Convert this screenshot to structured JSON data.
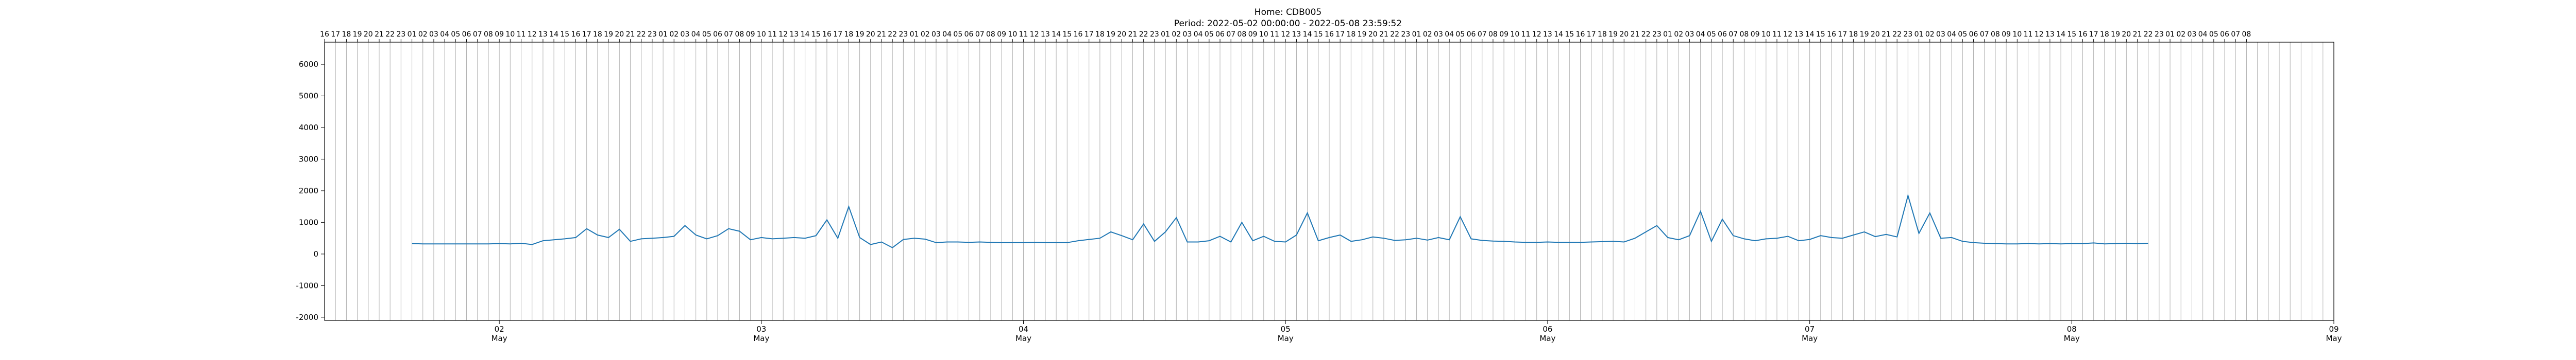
{
  "title": "Home: CDB005",
  "subtitle": "Period: 2022-05-02 00:00:00 - 2022-05-08 23:59:52",
  "chart_data": {
    "type": "line",
    "title": "Home: CDB005",
    "subtitle": "Period: 2022-05-02 00:00:00 - 2022-05-08 23:59:52",
    "xlabel": "",
    "ylabel": "",
    "x_start": "2022-05-01 16:00",
    "x_end": "2022-05-09 08:00",
    "xlim": [
      -8,
      176
    ],
    "ylim": [
      -2100,
      6700
    ],
    "grid": true,
    "grid_axis": "x-hourly",
    "legend": false,
    "line_color": "#1f77b4",
    "bottom_ticks": [
      {
        "x": 8,
        "day": "02",
        "month": "May"
      },
      {
        "x": 32,
        "day": "03",
        "month": "May"
      },
      {
        "x": 56,
        "day": "04",
        "month": "May"
      },
      {
        "x": 80,
        "day": "05",
        "month": "May"
      },
      {
        "x": 104,
        "day": "06",
        "month": "May"
      },
      {
        "x": 128,
        "day": "07",
        "month": "May"
      },
      {
        "x": 152,
        "day": "08",
        "month": "May"
      },
      {
        "x": 176,
        "day": "09",
        "month": "May"
      }
    ],
    "y_ticks": [
      -2000,
      -1000,
      0,
      1000,
      2000,
      3000,
      4000,
      5000,
      6000
    ],
    "top_hour_ticks": [
      "16",
      "17",
      "18",
      "19",
      "20",
      "21",
      "22",
      "23",
      "01",
      "02",
      "03",
      "04",
      "05",
      "06",
      "07",
      "08",
      "09",
      "10",
      "11",
      "12",
      "13",
      "14",
      "15",
      "16",
      "17",
      "18",
      "19",
      "20",
      "21",
      "22",
      "23",
      "01",
      "02",
      "03",
      "04",
      "05",
      "06",
      "07",
      "08",
      "09",
      "10",
      "11",
      "12",
      "13",
      "14",
      "15",
      "16",
      "17",
      "18",
      "19",
      "20",
      "21",
      "22",
      "23",
      "01",
      "02",
      "03",
      "04",
      "05",
      "06",
      "07",
      "08",
      "09",
      "10",
      "11",
      "12",
      "13",
      "14",
      "15",
      "16",
      "17",
      "18",
      "19",
      "20",
      "21",
      "22",
      "23",
      "01",
      "02",
      "03",
      "04",
      "05",
      "06",
      "07",
      "08",
      "09",
      "10",
      "11",
      "12",
      "13",
      "14",
      "15",
      "16",
      "17",
      "18",
      "19",
      "20",
      "21",
      "22",
      "23",
      "01",
      "02",
      "03",
      "04",
      "05",
      "06",
      "07",
      "08",
      "09",
      "10",
      "11",
      "12",
      "13",
      "14",
      "15",
      "16",
      "17",
      "18",
      "19",
      "20",
      "21",
      "22",
      "23",
      "01",
      "02",
      "03",
      "04",
      "05",
      "06",
      "07",
      "08",
      "09",
      "10",
      "11",
      "12",
      "13",
      "14",
      "15",
      "16",
      "17",
      "18",
      "19",
      "20",
      "21",
      "22",
      "23",
      "01",
      "02",
      "03",
      "04",
      "05",
      "06",
      "07",
      "08",
      "09",
      "10",
      "11",
      "12",
      "13",
      "14",
      "15",
      "16",
      "17",
      "18",
      "19",
      "20",
      "21",
      "22",
      "23",
      "01",
      "02",
      "03",
      "04",
      "05",
      "06",
      "07",
      "08"
    ],
    "series": [
      {
        "name": "",
        "points": [
          [
            0,
            330
          ],
          [
            1,
            320
          ],
          [
            2,
            320
          ],
          [
            3,
            320
          ],
          [
            4,
            320
          ],
          [
            5,
            320
          ],
          [
            6,
            320
          ],
          [
            7,
            320
          ],
          [
            8,
            330
          ],
          [
            9,
            320
          ],
          [
            10,
            340
          ],
          [
            11,
            300
          ],
          [
            12,
            420
          ],
          [
            13,
            450
          ],
          [
            14,
            480
          ],
          [
            15,
            520
          ],
          [
            16,
            800
          ],
          [
            17,
            600
          ],
          [
            18,
            520
          ],
          [
            19,
            780
          ],
          [
            20,
            400
          ],
          [
            21,
            480
          ],
          [
            22,
            500
          ],
          [
            23,
            520
          ],
          [
            24,
            560
          ],
          [
            25,
            900
          ],
          [
            26,
            600
          ],
          [
            27,
            480
          ],
          [
            28,
            580
          ],
          [
            29,
            800
          ],
          [
            30,
            720
          ],
          [
            31,
            450
          ],
          [
            32,
            520
          ],
          [
            33,
            480
          ],
          [
            34,
            500
          ],
          [
            35,
            520
          ],
          [
            36,
            500
          ],
          [
            37,
            580
          ],
          [
            38,
            1080
          ],
          [
            39,
            500
          ],
          [
            40,
            1500
          ],
          [
            41,
            520
          ],
          [
            42,
            300
          ],
          [
            43,
            380
          ],
          [
            44,
            200
          ],
          [
            45,
            460
          ],
          [
            46,
            500
          ],
          [
            47,
            470
          ],
          [
            48,
            360
          ],
          [
            49,
            380
          ],
          [
            50,
            380
          ],
          [
            51,
            370
          ],
          [
            52,
            380
          ],
          [
            53,
            370
          ],
          [
            54,
            360
          ],
          [
            55,
            360
          ],
          [
            56,
            360
          ],
          [
            57,
            370
          ],
          [
            58,
            360
          ],
          [
            59,
            360
          ],
          [
            60,
            360
          ],
          [
            61,
            420
          ],
          [
            62,
            460
          ],
          [
            63,
            500
          ],
          [
            64,
            700
          ],
          [
            65,
            580
          ],
          [
            66,
            450
          ],
          [
            67,
            950
          ],
          [
            68,
            400
          ],
          [
            69,
            700
          ],
          [
            70,
            1150
          ],
          [
            71,
            380
          ],
          [
            72,
            380
          ],
          [
            73,
            420
          ],
          [
            74,
            560
          ],
          [
            75,
            380
          ],
          [
            76,
            1000
          ],
          [
            77,
            420
          ],
          [
            78,
            560
          ],
          [
            79,
            400
          ],
          [
            80,
            380
          ],
          [
            81,
            600
          ],
          [
            82,
            1300
          ],
          [
            83,
            420
          ],
          [
            84,
            520
          ],
          [
            85,
            600
          ],
          [
            86,
            400
          ],
          [
            87,
            450
          ],
          [
            88,
            540
          ],
          [
            89,
            500
          ],
          [
            90,
            430
          ],
          [
            91,
            450
          ],
          [
            92,
            500
          ],
          [
            93,
            440
          ],
          [
            94,
            520
          ],
          [
            95,
            450
          ],
          [
            96,
            1180
          ],
          [
            97,
            480
          ],
          [
            98,
            430
          ],
          [
            99,
            410
          ],
          [
            100,
            400
          ],
          [
            101,
            380
          ],
          [
            102,
            370
          ],
          [
            103,
            370
          ],
          [
            104,
            380
          ],
          [
            105,
            370
          ],
          [
            106,
            370
          ],
          [
            107,
            370
          ],
          [
            108,
            380
          ],
          [
            109,
            390
          ],
          [
            110,
            400
          ],
          [
            111,
            380
          ],
          [
            112,
            500
          ],
          [
            113,
            700
          ],
          [
            114,
            900
          ],
          [
            115,
            520
          ],
          [
            116,
            450
          ],
          [
            117,
            580
          ],
          [
            118,
            1350
          ],
          [
            119,
            400
          ],
          [
            120,
            1100
          ],
          [
            121,
            580
          ],
          [
            122,
            480
          ],
          [
            123,
            420
          ],
          [
            124,
            480
          ],
          [
            125,
            500
          ],
          [
            126,
            560
          ],
          [
            127,
            420
          ],
          [
            128,
            460
          ],
          [
            129,
            580
          ],
          [
            130,
            520
          ],
          [
            131,
            500
          ],
          [
            132,
            600
          ],
          [
            133,
            700
          ],
          [
            134,
            550
          ],
          [
            135,
            620
          ],
          [
            136,
            540
          ],
          [
            137,
            1850
          ],
          [
            138,
            650
          ],
          [
            139,
            1300
          ],
          [
            140,
            500
          ],
          [
            141,
            520
          ],
          [
            142,
            400
          ],
          [
            143,
            360
          ],
          [
            144,
            340
          ],
          [
            145,
            330
          ],
          [
            146,
            320
          ],
          [
            147,
            320
          ],
          [
            148,
            330
          ],
          [
            149,
            320
          ],
          [
            150,
            330
          ],
          [
            151,
            320
          ],
          [
            152,
            330
          ],
          [
            153,
            330
          ],
          [
            154,
            350
          ],
          [
            155,
            320
          ],
          [
            156,
            330
          ],
          [
            157,
            340
          ],
          [
            158,
            330
          ],
          [
            159,
            340
          ]
        ]
      }
    ]
  }
}
